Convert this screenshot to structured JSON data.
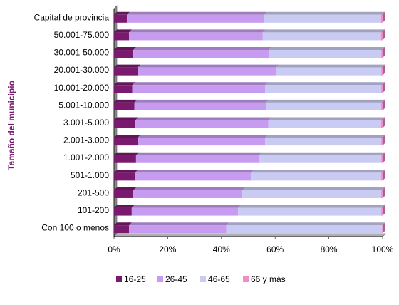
{
  "chart_data": {
    "type": "bar",
    "orientation": "horizontal",
    "stacked": "percent",
    "three_d": true,
    "ylabel": "Tamaño del municipio",
    "categories": [
      "Capital de provincia",
      "50.001-75.000",
      "30.001-50.000",
      "20.001-30.000",
      "10.001-20.000",
      "5.001-10.000",
      "3.001-5.000",
      "2.001-3.000",
      "1.001-2.000",
      "501-1.000",
      "201-500",
      "101-200",
      "Con 100 o menos"
    ],
    "series": [
      {
        "name": "16-25",
        "color": "#7a1a6f",
        "values": [
          4.8,
          5.6,
          7.2,
          8.8,
          6.8,
          7.6,
          8.0,
          8.8,
          8.2,
          7.8,
          7.2,
          6.6,
          5.6
        ]
      },
      {
        "name": "26-45",
        "color": "#c79bf0",
        "values": [
          51.0,
          49.8,
          50.5,
          51.5,
          49.5,
          49.0,
          49.5,
          47.5,
          45.8,
          43.2,
          40.6,
          39.6,
          36.2
        ]
      },
      {
        "name": "46-65",
        "color": "#c9cbf3",
        "values": [
          43.6,
          44.0,
          41.8,
          39.2,
          43.2,
          42.9,
          41.9,
          43.2,
          45.5,
          48.5,
          51.7,
          53.3,
          58.0
        ]
      },
      {
        "name": "66 y más",
        "color": "#f08cc8",
        "values": [
          0.6,
          0.6,
          0.5,
          0.5,
          0.5,
          0.5,
          0.6,
          0.5,
          0.5,
          0.5,
          0.5,
          0.5,
          0.2
        ]
      }
    ],
    "xlim": [
      0,
      100
    ],
    "xticks": [
      "0%",
      "20%",
      "40%",
      "60%",
      "80%",
      "100%"
    ],
    "legend": "bottom",
    "grid": false
  }
}
